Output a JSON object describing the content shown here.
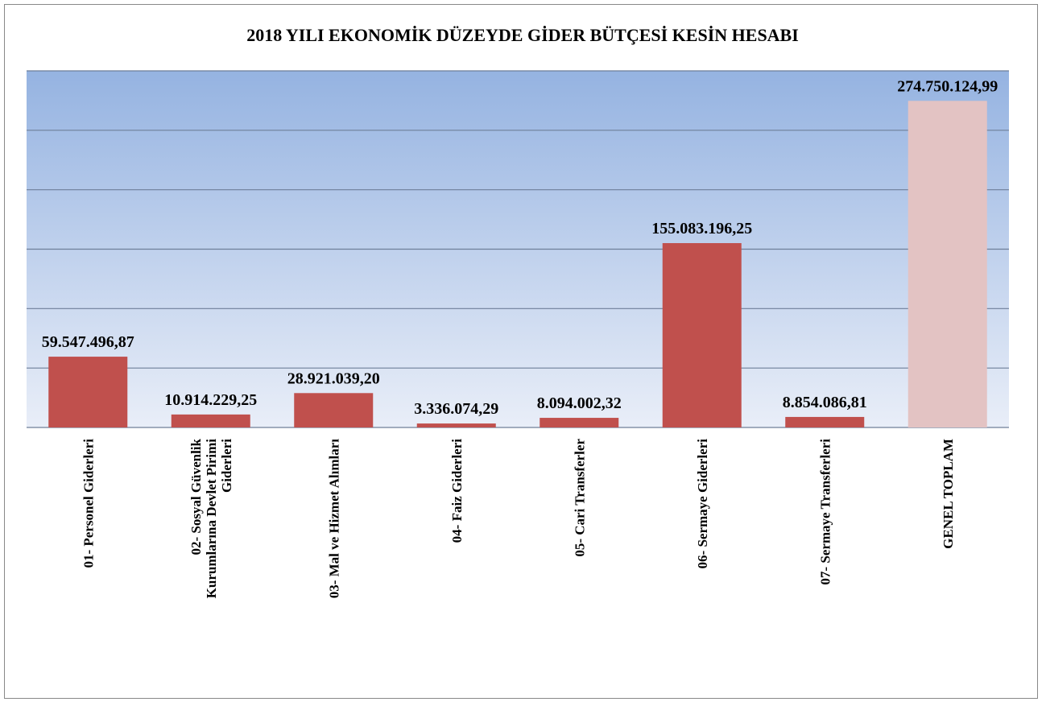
{
  "chart_data": {
    "type": "bar",
    "title": "2018 YILI EKONOMİK DÜZEYDE GİDER BÜTÇESİ KESİN HESABI",
    "categories": [
      "01- Personel Giderleri",
      "02- Sosyal Güvenlik Kurumlarına Devlet Pirimi Giderleri",
      "03- Mal ve Hizmet Alımları",
      "04- Faiz Giderleri",
      "05- Cari Transferler",
      "06- Sermaye Giderleri",
      "07- Sermaye Transferleri",
      "GENEL TOPLAM"
    ],
    "values": [
      59547496.87,
      10914229.25,
      28921039.2,
      3336074.29,
      8094002.32,
      155083196.25,
      8854086.81,
      274750124.99
    ],
    "value_labels": [
      "59.547.496,87",
      "10.914.229,25",
      "28.921.039,20",
      "3.336.074,29",
      "8.094.002,32",
      "155.083.196,25",
      "8.854.086,81",
      "274.750.124,99"
    ],
    "colors": [
      "#c0504d",
      "#c0504d",
      "#c0504d",
      "#c0504d",
      "#c0504d",
      "#c0504d",
      "#c0504d",
      "#e3c3c3"
    ],
    "ylim": [
      0,
      300000000
    ],
    "yticks": [
      0,
      50000000,
      100000000,
      150000000,
      200000000,
      250000000,
      300000000
    ],
    "grid": true
  }
}
